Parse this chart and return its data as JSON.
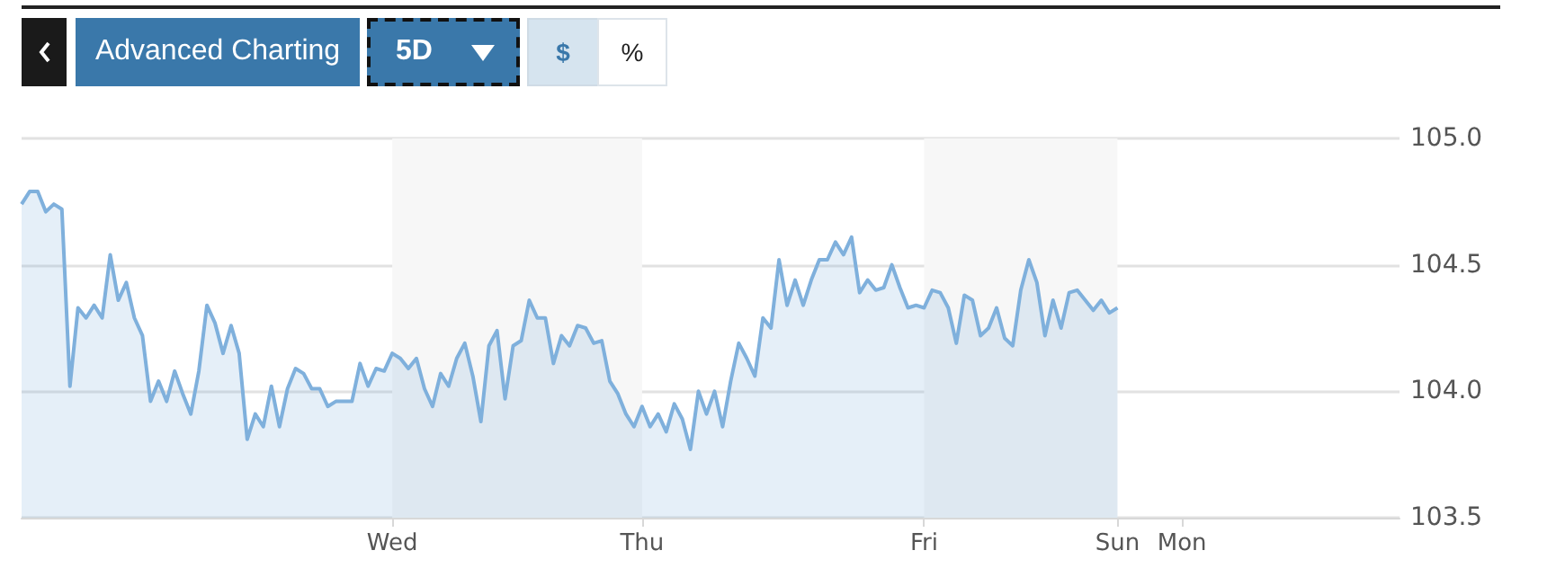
{
  "chart_data": {
    "type": "area",
    "annotations": [
      "Advanced Charting",
      "5D",
      "$",
      "%"
    ],
    "categories": [
      null,
      null,
      null,
      null,
      null,
      null,
      null,
      null,
      null,
      null,
      null,
      null,
      null,
      null,
      null,
      null,
      null,
      null,
      null,
      null,
      null,
      null,
      null,
      null,
      null,
      null,
      null,
      null,
      null,
      null,
      null,
      null,
      null,
      null,
      null,
      null,
      null,
      null,
      null,
      null,
      null,
      null,
      null,
      null,
      null,
      null,
      "Wed",
      null,
      null,
      null,
      null,
      null,
      null,
      null,
      null,
      null,
      null,
      null,
      null,
      null,
      null,
      null,
      null,
      null,
      null,
      null,
      null,
      null,
      null,
      null,
      null,
      null,
      null,
      null,
      null,
      null,
      null,
      "Thu",
      null,
      null,
      null,
      null,
      null,
      null,
      null,
      null,
      null,
      null,
      null,
      null,
      null,
      null,
      null,
      null,
      null,
      null,
      null,
      null,
      null,
      null,
      null,
      null,
      null,
      null,
      null,
      null,
      null,
      null,
      null,
      null,
      null,
      null,
      "Fri",
      null,
      null,
      null,
      null,
      null,
      null,
      null,
      null,
      null,
      null,
      null,
      null,
      null,
      null,
      null,
      null,
      null,
      null,
      null,
      null,
      null,
      null,
      null,
      "Sun",
      null,
      null,
      null,
      null,
      null,
      null,
      null,
      "Mon",
      null,
      null,
      null,
      null,
      null,
      null,
      null,
      null,
      null,
      null,
      null,
      null,
      null,
      null,
      null,
      null,
      null,
      null,
      null,
      null,
      null,
      null,
      null,
      null,
      null,
      null,
      null
    ],
    "series": [
      {
        "color": "#7fb0dc",
        "values": [
          104.74,
          104.79,
          104.79,
          104.71,
          104.74,
          104.72,
          104.02,
          104.33,
          104.29,
          104.34,
          104.29,
          104.54,
          104.36,
          104.43,
          104.29,
          104.22,
          103.96,
          104.04,
          103.96,
          104.08,
          103.99,
          103.91,
          104.08,
          104.34,
          104.27,
          104.15,
          104.26,
          104.15,
          103.81,
          103.91,
          103.86,
          104.02,
          103.86,
          104.01,
          104.09,
          104.07,
          104.01,
          104.01,
          103.94,
          103.96,
          103.96,
          103.96,
          104.11,
          104.02,
          104.09,
          104.08,
          104.15,
          104.13,
          104.09,
          104.13,
          104.01,
          103.94,
          104.07,
          104.02,
          104.13,
          104.19,
          104.06,
          103.88,
          104.18,
          104.24,
          103.97,
          104.18,
          104.2,
          104.36,
          104.29,
          104.29,
          104.11,
          104.22,
          104.18,
          104.26,
          104.25,
          104.19,
          104.2,
          104.04,
          103.99,
          103.91,
          103.86,
          103.94,
          103.86,
          103.91,
          103.84,
          103.95,
          103.89,
          103.77,
          104.0,
          103.91,
          104.0,
          103.86,
          104.04,
          104.19,
          104.13,
          104.06,
          104.29,
          104.25,
          104.52,
          104.34,
          104.44,
          104.34,
          104.44,
          104.52,
          104.52,
          104.59,
          104.54,
          104.61,
          104.39,
          104.44,
          104.4,
          104.41,
          104.5,
          104.41,
          104.33,
          104.34,
          104.33,
          104.4,
          104.39,
          104.33,
          104.19,
          104.38,
          104.36,
          104.22,
          104.25,
          104.33,
          104.21,
          104.18,
          104.4,
          104.52,
          104.43,
          104.22,
          104.36,
          104.25,
          104.39,
          104.4,
          104.36,
          104.32,
          104.36,
          104.31,
          104.33,
          null,
          null,
          null,
          null,
          null,
          null,
          null,
          null,
          null,
          null,
          null,
          null,
          null,
          null,
          null,
          null,
          null,
          null,
          null,
          null,
          null,
          null,
          null,
          null,
          null,
          null,
          null,
          null,
          null,
          null,
          null,
          null,
          null,
          null,
          null
        ]
      }
    ],
    "ylim": [
      103.5,
      105
    ],
    "yticks": [
      {
        "value": 103.5,
        "label": "103.5"
      },
      {
        "value": 104,
        "label": "104.0"
      },
      {
        "value": 104.5,
        "label": "104.5"
      },
      {
        "value": 105,
        "label": "105.0"
      }
    ],
    "bands": [
      {
        "axis": "x",
        "from": "Wed",
        "to": "Thu",
        "color": "#f7f7f7"
      },
      {
        "axis": "x",
        "from": "Fri",
        "to": "Sun",
        "color": "#f7f7f7"
      }
    ],
    "grid": "y",
    "marker": "none",
    "line_style": "solid"
  }
}
